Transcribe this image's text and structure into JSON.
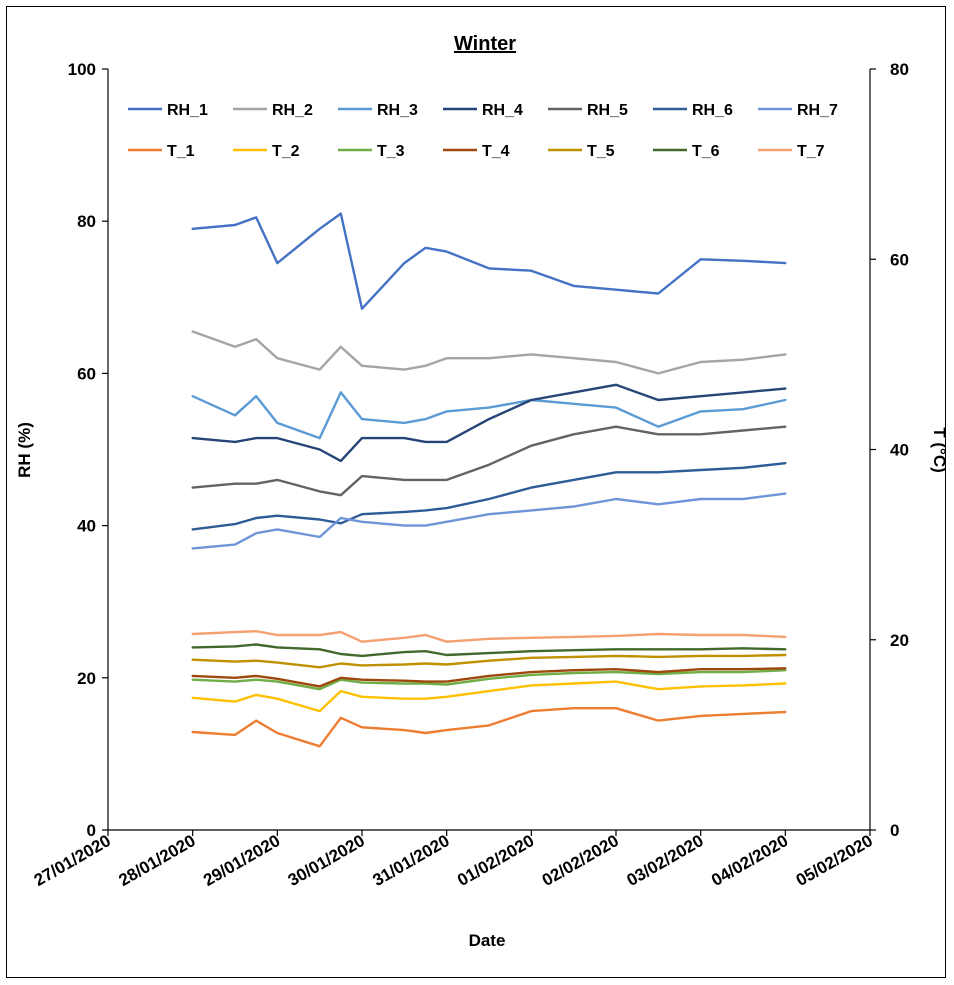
{
  "chart_data": {
    "type": "line",
    "title": "Winter",
    "xlabel": "Date",
    "ylabel": "RH (%)",
    "y2label": "T (°C)",
    "x_ticks": [
      "27/01/2020",
      "28/01/2020",
      "29/01/2020",
      "30/01/2020",
      "31/01/2020",
      "01/02/2020",
      "02/02/2020",
      "03/02/2020",
      "04/02/2020",
      "05/02/2020"
    ],
    "y_ticks": [
      "0",
      "20",
      "40",
      "60",
      "80",
      "100"
    ],
    "y2_ticks": [
      "0",
      "20",
      "40",
      "60",
      "80"
    ],
    "xlim": [
      "27/01/2020",
      "05/02/2020"
    ],
    "ylim": [
      0,
      100
    ],
    "y2lim": [
      0,
      80
    ],
    "grid": false,
    "legend_position": "top",
    "x": [
      "28/01/2020 00:00",
      "28/01/2020 12:00",
      "28/01/2020 18:00",
      "29/01/2020 00:00",
      "29/01/2020 12:00",
      "29/01/2020 18:00",
      "30/01/2020 00:00",
      "30/01/2020 12:00",
      "30/01/2020 18:00",
      "31/01/2020 00:00",
      "31/01/2020 12:00",
      "01/02/2020 00:00",
      "01/02/2020 12:00",
      "02/02/2020 00:00",
      "02/02/2020 12:00",
      "03/02/2020 00:00",
      "03/02/2020 12:00",
      "04/02/2020 00:00"
    ],
    "series": [
      {
        "name": "RH_1",
        "axis": "left",
        "color": "#4472C4",
        "values": [
          79,
          79.5,
          80.5,
          74.5,
          79,
          81,
          68.5,
          74.5,
          76.5,
          76,
          73.8,
          73.5,
          71.5,
          71,
          70.5,
          75,
          74.8,
          74.5
        ]
      },
      {
        "name": "RH_2",
        "axis": "left",
        "color": "#A5A5A5",
        "values": [
          65.5,
          63.5,
          64.5,
          62,
          60.5,
          63.5,
          61,
          60.5,
          61,
          62,
          62,
          62.5,
          62,
          61.5,
          60,
          61.5,
          61.8,
          62.5
        ]
      },
      {
        "name": "RH_3",
        "axis": "left",
        "color": "#5B9BD5",
        "values": [
          57,
          54.5,
          57,
          53.5,
          51.5,
          57.5,
          54,
          53.5,
          54,
          55,
          55.5,
          56.5,
          56,
          55.5,
          53,
          55,
          55.3,
          56.5
        ]
      },
      {
        "name": "RH_4",
        "axis": "left",
        "color": "#264478",
        "values": [
          51.5,
          51,
          51.5,
          51.5,
          50,
          48.5,
          51.5,
          51.5,
          51,
          51,
          54,
          56.5,
          57.5,
          58.5,
          56.5,
          57,
          57.5,
          58
        ]
      },
      {
        "name": "RH_5",
        "axis": "left",
        "color": "#636363",
        "values": [
          45,
          45.5,
          45.5,
          46,
          44.5,
          44,
          46.5,
          46,
          46,
          46,
          48,
          50.5,
          52,
          53,
          52,
          52,
          52.5,
          53
        ]
      },
      {
        "name": "RH_6",
        "axis": "left",
        "color": "#2E5C96",
        "values": [
          39.5,
          40.2,
          41,
          41.3,
          40.8,
          40.3,
          41.5,
          41.8,
          42,
          42.3,
          43.5,
          45,
          46,
          47,
          47,
          47.3,
          47.6,
          48.2
        ]
      },
      {
        "name": "RH_7",
        "axis": "left",
        "color": "#6F95D9",
        "values": [
          37,
          37.5,
          39,
          39.5,
          38.5,
          41,
          40.5,
          40,
          40,
          40.5,
          41.5,
          42,
          42.5,
          43.5,
          42.8,
          43.5,
          43.5,
          44.2
        ]
      },
      {
        "name": "T_1",
        "axis": "right",
        "color": "#ED7D31",
        "values": [
          10.3,
          10,
          11.5,
          10.2,
          8.8,
          11.8,
          10.8,
          10.5,
          10.2,
          10.5,
          11,
          12.5,
          12.8,
          12.8,
          11.5,
          12,
          12.2,
          12.4
        ]
      },
      {
        "name": "T_2",
        "axis": "right",
        "color": "#FFC000",
        "values": [
          13.9,
          13.5,
          14.2,
          13.8,
          12.5,
          14.6,
          14,
          13.8,
          13.8,
          14,
          14.6,
          15.2,
          15.4,
          15.6,
          14.8,
          15.1,
          15.2,
          15.4
        ]
      },
      {
        "name": "T_3",
        "axis": "right",
        "color": "#70AD47",
        "values": [
          15.8,
          15.6,
          15.8,
          15.6,
          14.8,
          15.8,
          15.5,
          15.4,
          15.4,
          15.3,
          15.9,
          16.3,
          16.5,
          16.6,
          16.4,
          16.6,
          16.6,
          16.8
        ]
      },
      {
        "name": "T_4",
        "axis": "right",
        "color": "#9E480E",
        "values": [
          16.2,
          16,
          16.2,
          15.9,
          15.1,
          16,
          15.8,
          15.7,
          15.6,
          15.6,
          16.2,
          16.6,
          16.8,
          16.9,
          16.6,
          16.9,
          16.9,
          17
        ]
      },
      {
        "name": "T_5",
        "axis": "right",
        "color": "#BF9000",
        "values": [
          17.9,
          17.7,
          17.8,
          17.6,
          17.1,
          17.5,
          17.3,
          17.4,
          17.5,
          17.4,
          17.8,
          18.1,
          18.2,
          18.3,
          18.2,
          18.3,
          18.3,
          18.4
        ]
      },
      {
        "name": "T_6",
        "axis": "right",
        "color": "#43682B",
        "values": [
          19.2,
          19.3,
          19.5,
          19.2,
          19,
          18.5,
          18.3,
          18.7,
          18.8,
          18.4,
          18.6,
          18.8,
          18.9,
          19,
          19,
          19,
          19.1,
          19
        ]
      },
      {
        "name": "T_7",
        "axis": "right",
        "color": "#F4A070",
        "values": [
          20.6,
          20.8,
          20.9,
          20.5,
          20.5,
          20.8,
          19.8,
          20.2,
          20.5,
          19.8,
          20.1,
          20.2,
          20.3,
          20.4,
          20.6,
          20.5,
          20.5,
          20.3
        ]
      }
    ]
  }
}
